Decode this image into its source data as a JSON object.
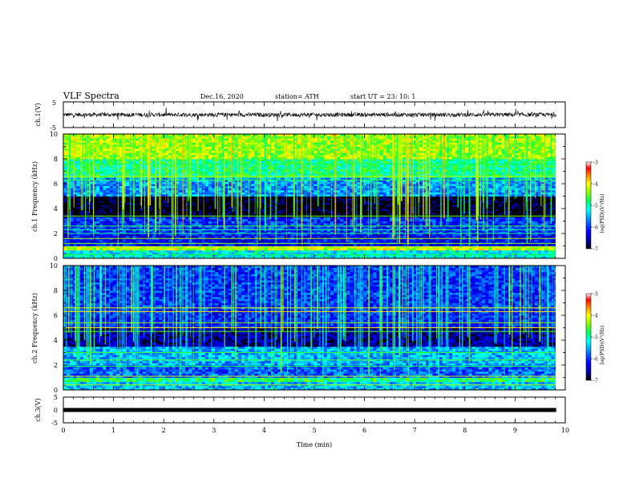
{
  "header": {
    "title": "VLF Spectra",
    "date": "Dec.16, 2020",
    "station": "station= ATH",
    "start": "start  UT  =   23: 10: 1"
  },
  "chart_data": [
    {
      "type": "line",
      "name": "ch1-waveform",
      "ylabel": "ch.1(V)",
      "xlim": [
        0,
        10
      ],
      "ylim": [
        -5,
        5
      ],
      "yticks": [
        5,
        -5
      ],
      "baseline": 0,
      "trace_level_range": [
        -1.0,
        1.0
      ]
    },
    {
      "type": "heatmap",
      "name": "ch1-spectrogram",
      "ylabel": "ch.1  Frequency (kHz)",
      "xlim": [
        0,
        10
      ],
      "ylim": [
        0,
        10
      ],
      "yticks": [
        0,
        2,
        4,
        6,
        8,
        10
      ],
      "colorbar": {
        "label": "log(PSD)(V²/Hz)",
        "range": [
          -7,
          -3
        ],
        "ticks": [
          -3,
          -4,
          -5,
          -6,
          -7
        ]
      },
      "bands": [
        {
          "f0": 0.0,
          "f1": 0.7,
          "level": -5.2
        },
        {
          "f0": 0.7,
          "f1": 1.0,
          "level": -4.2
        },
        {
          "f0": 1.0,
          "f1": 2.0,
          "level": -6.2
        },
        {
          "f0": 2.0,
          "f1": 3.3,
          "level": -6.0
        },
        {
          "f0": 3.3,
          "f1": 5.0,
          "level": -7.0
        },
        {
          "f0": 5.0,
          "f1": 6.5,
          "level": -5.6
        },
        {
          "f0": 6.5,
          "f1": 8.0,
          "level": -4.9
        },
        {
          "f0": 8.0,
          "f1": 10.0,
          "level": -4.3
        }
      ],
      "tones_khz": [
        0.3,
        0.9,
        1.2,
        1.6,
        2.0,
        2.3,
        2.6,
        3.4,
        6.3,
        6.6,
        7.6
      ],
      "sferic_level": -4.3
    },
    {
      "type": "heatmap",
      "name": "ch2-spectrogram",
      "ylabel": "ch.2  Frequency (kHz)",
      "xlim": [
        0,
        10
      ],
      "ylim": [
        0,
        10
      ],
      "yticks": [
        0,
        2,
        4,
        6,
        8,
        10
      ],
      "colorbar": {
        "label": "log(PSD)(V²/Hz)",
        "range": [
          -7,
          -3
        ],
        "ticks": [
          -3,
          -4,
          -5,
          -6,
          -7
        ]
      },
      "bands": [
        {
          "f0": 0.0,
          "f1": 0.6,
          "level": -5.4
        },
        {
          "f0": 0.6,
          "f1": 1.0,
          "level": -4.8
        },
        {
          "f0": 1.0,
          "f1": 2.0,
          "level": -5.8
        },
        {
          "f0": 2.0,
          "f1": 3.5,
          "level": -5.5
        },
        {
          "f0": 3.5,
          "f1": 5.0,
          "level": -6.6
        },
        {
          "f0": 5.0,
          "f1": 6.5,
          "level": -6.1
        },
        {
          "f0": 6.5,
          "f1": 10.0,
          "level": -6.0
        }
      ],
      "tones_khz": [
        0.4,
        1.1,
        1.9,
        2.4,
        3.0,
        4.7,
        5.0,
        5.4,
        6.3,
        6.6
      ],
      "sferic_level": -4.9
    },
    {
      "type": "line",
      "name": "ch3-waveform",
      "ylabel": "ch.3(V)",
      "xlabel": "Time  (min)",
      "xlim": [
        0,
        10
      ],
      "ylim": [
        -5,
        5
      ],
      "yticks": [
        5,
        0,
        -5
      ],
      "trace_level": 0,
      "xticks": [
        0,
        1,
        2,
        3,
        4,
        5,
        6,
        7,
        8,
        9,
        10
      ],
      "data_end_min": 9.82
    }
  ]
}
